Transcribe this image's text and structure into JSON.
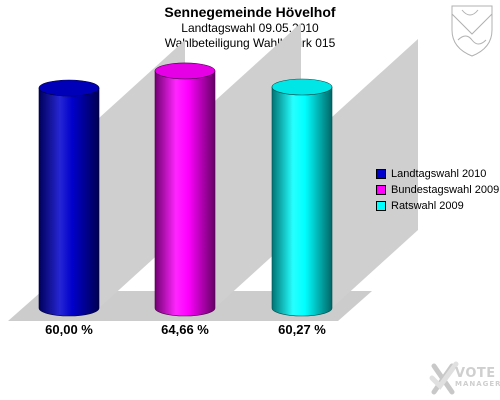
{
  "chart_data": {
    "type": "bar",
    "title": "Sennegemeinde Hövelhof",
    "subtitles": [
      "Landtagswahl 09.05.2010",
      "Wahlbeteiligung Wahlbezirk 015"
    ],
    "categories": [
      "Landtagswahl 2010",
      "Bundestagswahl 2009",
      "Ratswahl 2009"
    ],
    "values": [
      60.0,
      64.66,
      60.27
    ],
    "value_labels": [
      "60,00 %",
      "64,66 %",
      "60,27 %"
    ],
    "colors": [
      "#0000cc",
      "#ff00ff",
      "#00ffff"
    ],
    "legend_position": "right",
    "grid": false,
    "ylim": [
      0,
      70
    ]
  },
  "watermark": {
    "line1": "VOTE",
    "line2": "MANAGER",
    "icon": "checkmark-x-icon"
  },
  "crest_icon": "coat-of-arms-icon"
}
